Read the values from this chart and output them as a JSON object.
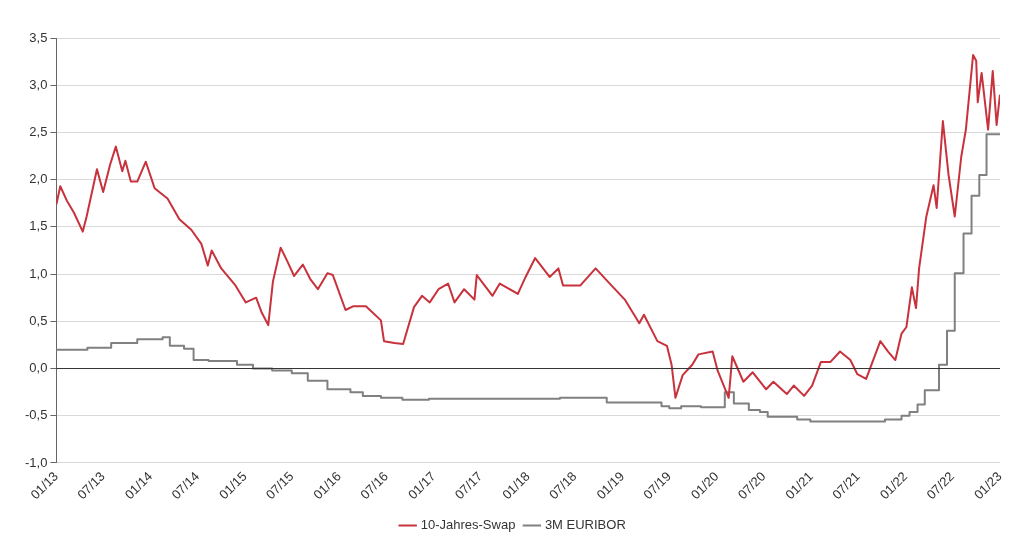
{
  "chart_data": {
    "type": "line",
    "xlim": [
      "2013-01-01",
      "2023-01-01"
    ],
    "xticks": [
      {
        "value": "2013-01",
        "label": "01/13"
      },
      {
        "value": "2013-07",
        "label": "07/13"
      },
      {
        "value": "2014-01",
        "label": "01/14"
      },
      {
        "value": "2014-07",
        "label": "07/14"
      },
      {
        "value": "2015-01",
        "label": "01/15"
      },
      {
        "value": "2015-07",
        "label": "07/15"
      },
      {
        "value": "2016-01",
        "label": "01/16"
      },
      {
        "value": "2016-07",
        "label": "07/16"
      },
      {
        "value": "2017-01",
        "label": "01/17"
      },
      {
        "value": "2017-07",
        "label": "07/17"
      },
      {
        "value": "2018-01",
        "label": "01/18"
      },
      {
        "value": "2018-07",
        "label": "07/18"
      },
      {
        "value": "2019-01",
        "label": "01/19"
      },
      {
        "value": "2019-07",
        "label": "07/19"
      },
      {
        "value": "2020-01",
        "label": "01/20"
      },
      {
        "value": "2020-07",
        "label": "07/20"
      },
      {
        "value": "2021-01",
        "label": "01/21"
      },
      {
        "value": "2021-07",
        "label": "07/21"
      },
      {
        "value": "2022-01",
        "label": "01/22"
      },
      {
        "value": "2022-07",
        "label": "07/22"
      },
      {
        "value": "2023-01",
        "label": "01/23"
      }
    ],
    "ylim": [
      -1.0,
      3.5
    ],
    "yticks": [
      {
        "value": -1.0,
        "label": "-1,0"
      },
      {
        "value": -0.5,
        "label": "-0,5"
      },
      {
        "value": 0,
        "label": "0,0"
      },
      {
        "value": 0.5,
        "label": "0,5"
      },
      {
        "value": 1.0,
        "label": "1,0"
      },
      {
        "value": 1.5,
        "label": "1,5"
      },
      {
        "value": 2.0,
        "label": "2,0"
      },
      {
        "value": 2.5,
        "label": "2,5"
      },
      {
        "value": 3.0,
        "label": "3,0"
      },
      {
        "value": 3.5,
        "label": "3,5"
      }
    ],
    "grid": "y",
    "legend": "bottom",
    "marker": "none",
    "line_style": "solid",
    "ref_lines": [
      {
        "axis": "y",
        "value": 0,
        "color": "#333333"
      }
    ],
    "series": [
      {
        "name": "10-Jahres-Swap",
        "color": "#c8323c",
        "x": [
          "2013-01-01",
          "2013-01-16",
          "2013-02-10",
          "2013-03-10",
          "2013-04-13",
          "2013-04-28",
          "2013-06-07",
          "2013-07-01",
          "2013-07-28",
          "2013-08-19",
          "2013-09-13",
          "2013-09-25",
          "2013-10-16",
          "2013-11-10",
          "2013-12-13",
          "2014-01-16",
          "2014-03-07",
          "2014-04-22",
          "2014-06-07",
          "2014-07-16",
          "2014-08-10",
          "2014-08-25",
          "2014-10-01",
          "2014-11-25",
          "2015-01-04",
          "2015-02-13",
          "2015-03-07",
          "2015-04-01",
          "2015-04-19",
          "2015-05-19",
          "2015-06-13",
          "2015-07-10",
          "2015-08-13",
          "2015-09-10",
          "2015-10-10",
          "2015-11-16",
          "2015-12-07",
          "2016-01-25",
          "2016-02-25",
          "2016-04-13",
          "2016-06-10",
          "2016-06-22",
          "2016-08-01",
          "2016-09-04",
          "2016-10-16",
          "2016-11-16",
          "2016-12-16",
          "2017-01-19",
          "2017-02-25",
          "2017-03-22",
          "2017-04-28",
          "2017-06-07",
          "2017-06-16",
          "2017-08-16",
          "2017-09-13",
          "2017-11-22",
          "2017-12-22",
          "2018-01-28",
          "2018-03-25",
          "2018-04-28",
          "2018-05-16",
          "2018-07-22",
          "2018-09-19",
          "2018-11-19",
          "2019-01-10",
          "2019-03-07",
          "2019-03-25",
          "2019-05-16",
          "2019-06-22",
          "2019-07-10",
          "2019-07-25",
          "2019-08-22",
          "2019-09-28",
          "2019-10-22",
          "2019-12-16",
          "2020-01-04",
          "2020-02-16",
          "2020-03-01",
          "2020-04-13",
          "2020-05-19",
          "2020-07-10",
          "2020-08-07",
          "2020-09-28",
          "2020-10-25",
          "2020-12-04",
          "2021-01-04",
          "2021-02-07",
          "2021-03-16",
          "2021-04-22",
          "2021-06-01",
          "2021-06-28",
          "2021-08-01",
          "2021-09-25",
          "2021-10-25",
          "2021-11-22",
          "2021-12-16",
          "2022-01-04",
          "2022-01-25",
          "2022-02-10",
          "2022-02-22",
          "2022-03-22",
          "2022-04-19",
          "2022-05-01",
          "2022-05-25",
          "2022-06-16",
          "2022-07-10",
          "2022-08-04",
          "2022-08-22",
          "2022-09-13",
          "2022-09-19",
          "2022-10-01",
          "2022-10-07",
          "2022-10-22",
          "2022-11-16",
          "2022-12-04",
          "2022-12-19",
          "2023-01-01"
        ],
        "values": [
          1.74,
          1.93,
          1.78,
          1.65,
          1.45,
          1.61,
          2.11,
          1.87,
          2.16,
          2.35,
          2.09,
          2.2,
          1.98,
          1.98,
          2.19,
          1.91,
          1.8,
          1.58,
          1.47,
          1.32,
          1.09,
          1.25,
          1.06,
          0.88,
          0.7,
          0.75,
          0.59,
          0.46,
          0.92,
          1.28,
          1.14,
          0.98,
          1.1,
          0.95,
          0.84,
          1.01,
          0.99,
          0.62,
          0.66,
          0.66,
          0.51,
          0.29,
          0.27,
          0.26,
          0.65,
          0.77,
          0.7,
          0.84,
          0.9,
          0.7,
          0.84,
          0.73,
          0.99,
          0.77,
          0.9,
          0.79,
          0.97,
          1.17,
          0.97,
          1.06,
          0.88,
          0.88,
          1.06,
          0.88,
          0.73,
          0.48,
          0.57,
          0.29,
          0.24,
          0.04,
          -0.31,
          -0.07,
          0.04,
          0.15,
          0.18,
          -0.02,
          -0.31,
          0.13,
          -0.14,
          -0.04,
          -0.22,
          -0.14,
          -0.27,
          -0.18,
          -0.29,
          -0.18,
          0.07,
          0.07,
          0.18,
          0.09,
          -0.06,
          -0.11,
          0.29,
          0.18,
          0.09,
          0.37,
          0.44,
          0.86,
          0.64,
          1.06,
          1.61,
          1.94,
          1.7,
          2.62,
          2.05,
          1.61,
          2.24,
          2.53,
          3.15,
          3.32,
          3.26,
          2.82,
          3.13,
          2.53,
          3.15,
          2.58,
          2.9
        ]
      },
      {
        "name": "3M EURIBOR",
        "color": "#808080",
        "type": "step",
        "x": [
          "2013-01-01",
          "2013-05-01",
          "2013-08-01",
          "2013-11-10",
          "2014-02-16",
          "2014-03-16",
          "2014-05-10",
          "2014-06-16",
          "2014-08-13",
          "2014-12-01",
          "2015-02-01",
          "2015-04-16",
          "2015-07-01",
          "2015-09-01",
          "2015-11-16",
          "2016-02-13",
          "2016-04-01",
          "2016-06-10",
          "2016-09-01",
          "2016-12-13",
          "2018-05-04",
          "2018-11-01",
          "2019-06-01",
          "2019-07-01",
          "2019-08-16",
          "2019-11-01",
          "2020-02-01",
          "2020-03-07",
          "2020-05-04",
          "2020-06-16",
          "2020-07-16",
          "2020-11-07",
          "2020-12-28",
          "2021-10-13",
          "2021-12-16",
          "2022-01-16",
          "2022-02-16",
          "2022-03-16",
          "2022-05-10",
          "2022-06-10",
          "2022-07-10",
          "2022-08-13",
          "2022-09-13",
          "2022-10-13",
          "2022-11-10",
          "2022-12-10",
          "2023-01-01"
        ],
        "values": [
          0.21,
          0.2,
          0.22,
          0.27,
          0.31,
          0.33,
          0.24,
          0.21,
          0.09,
          0.08,
          0.04,
          0.0,
          -0.02,
          -0.05,
          -0.13,
          -0.22,
          -0.25,
          -0.29,
          -0.31,
          -0.33,
          -0.32,
          -0.31,
          -0.36,
          -0.4,
          -0.42,
          -0.4,
          -0.41,
          -0.25,
          -0.37,
          -0.44,
          -0.46,
          -0.51,
          -0.54,
          -0.56,
          -0.54,
          -0.5,
          -0.46,
          -0.38,
          -0.23,
          0.04,
          0.4,
          1.01,
          1.43,
          1.83,
          2.05,
          2.48,
          2.48
        ]
      }
    ]
  }
}
